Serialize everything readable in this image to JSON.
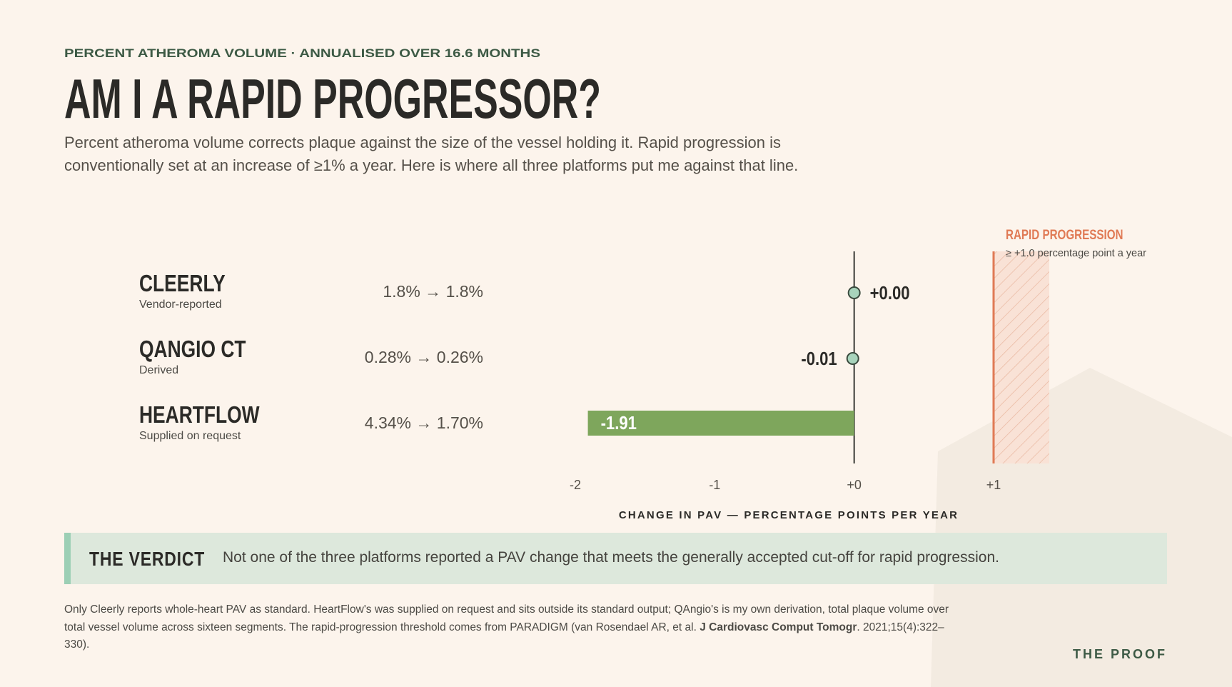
{
  "header": {
    "eyebrow": "PERCENT ATHEROMA VOLUME  ·  ANNUALISED OVER 16.6 MONTHS",
    "title": "AM I A RAPID PROGRESSOR?",
    "subtitle": "Percent atheroma volume corrects plaque against the size of the vessel holding it. Rapid progression is conventionally set at an increase of ≥1% a year. Here is where all three platforms put me against that line."
  },
  "chart_data": {
    "type": "bar",
    "categories": [
      "CLEERLY",
      "QANGIO CT",
      "HEARTFLOW"
    ],
    "category_notes": [
      "Vendor-reported",
      "Derived",
      "Supplied on request"
    ],
    "before_after": [
      "1.8% → 1.8%",
      "0.28% → 0.26%",
      "4.34% → 1.70%"
    ],
    "values": [
      0.0,
      -0.01,
      -1.91
    ],
    "value_labels": [
      "+0.00",
      "-0.01",
      "-1.91"
    ],
    "mark_styles": [
      "dot",
      "dot",
      "bar"
    ],
    "color": "#7ea65c",
    "dot_color": "#a8d4bc",
    "xlim": [
      -2,
      1
    ],
    "xticks": [
      -2,
      -1,
      {
        "value": 0,
        "label": "+0"
      },
      {
        "value": 1,
        "label": "+1"
      }
    ],
    "xlabel": "CHANGE IN PAV — PERCENTAGE POINTS PER YEAR",
    "threshold": {
      "value": 1,
      "label": "RAPID PROGRESSION",
      "note": "≥ +1.0 percentage point a year",
      "color": "#e07a55"
    }
  },
  "verdict": {
    "label": "THE VERDICT",
    "text": "Not one of the three platforms reported a PAV change that meets the generally accepted cut-off for rapid progression."
  },
  "footnote": {
    "before": "Only Cleerly reports whole-heart PAV as standard. HeartFlow's was supplied on request and sits outside its standard output; QAngio's is my own derivation, total plaque volume over total vessel volume across sixteen segments. The rapid-progression threshold comes from PARADIGM (van Rosendael AR, et al. ",
    "journal": "J Cardiovasc Comput Tomogr",
    "after": ". 2021;15(4):322–330)."
  },
  "brand": "THE PROOF"
}
